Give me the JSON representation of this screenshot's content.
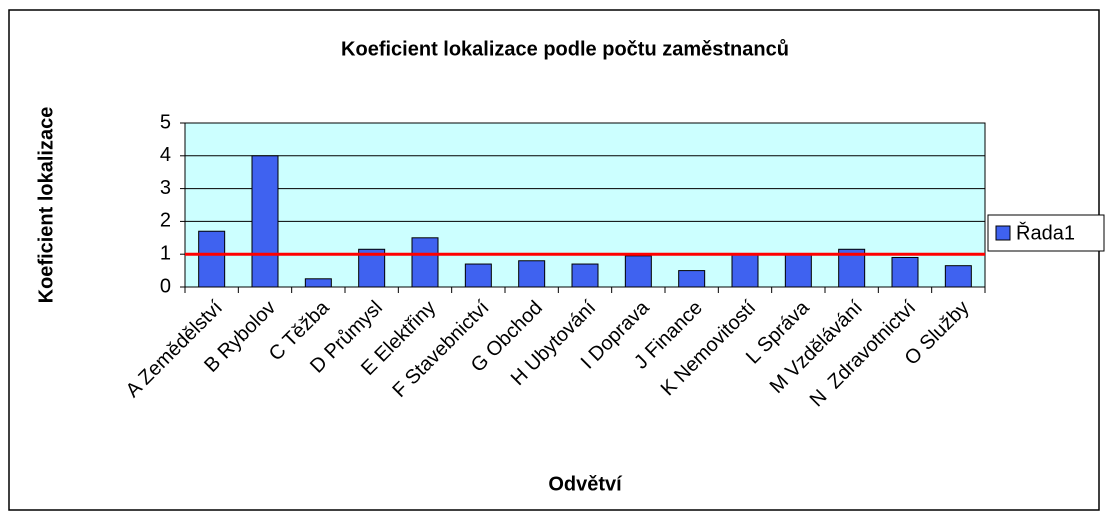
{
  "chart_data": {
    "type": "bar",
    "title": "Koeficient lokalizace podle počtu zaměstnanců",
    "x_label": "Odvětví",
    "y_label": "Koeficient lokalizace",
    "categories": [
      "A Zemědělství",
      "B Rybolov",
      "C Těžba",
      "D Průmysl",
      "E Elektřiny",
      "F Stavebnictví",
      "G Obchod",
      "H Ubytování",
      "I Doprava",
      "J Finance",
      "K Nemovitostí",
      "L Správa",
      "M Vzdělávání",
      "N  Zdravotnictví",
      "O Služby"
    ],
    "series": [
      {
        "name": "Řada1",
        "color": "#3f62f0",
        "values": [
          1.7,
          4.0,
          0.25,
          1.15,
          1.5,
          0.7,
          0.8,
          0.7,
          0.95,
          0.5,
          1.0,
          1.0,
          1.15,
          0.9,
          0.65
        ]
      }
    ],
    "reference_line": {
      "value": 1,
      "color": "#ff0000"
    },
    "ylim": [
      0,
      5
    ],
    "yticks": [
      0,
      1,
      2,
      3,
      4,
      5
    ],
    "grid": true,
    "legend": "right",
    "plot_background": "#ccffff"
  }
}
